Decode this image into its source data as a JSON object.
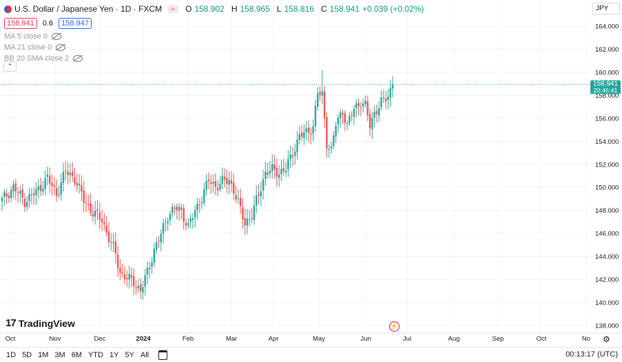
{
  "header": {
    "symbol_title": "U.S. Dollar / Japanese Yen · 1D · FXCM",
    "open_label": "O",
    "open": "158.902",
    "high_label": "H",
    "high": "158.965",
    "low_label": "L",
    "low": "158.816",
    "close_label": "C",
    "close": "158.941",
    "change": "+0.039 (+0.02%)",
    "sell_price": "158.941",
    "spread": "0.6",
    "buy_price": "158.947",
    "currency": "JPY",
    "collapse_icon": "chevron-up-icon",
    "pill_icon": "equals-icon"
  },
  "indicators": [
    {
      "label": "MA 5 close 0"
    },
    {
      "label": "MA 21 close 0"
    },
    {
      "label": "BB 20 SMA close 2"
    }
  ],
  "last_price": {
    "value": "158.941",
    "countdown": "20:46:41",
    "color": "#26a69a"
  },
  "brand": "TradingView",
  "timeframes": [
    "1D",
    "5D",
    "1M",
    "3M",
    "6M",
    "YTD",
    "1Y",
    "5Y",
    "All"
  ],
  "clock": "00:13:17 (UTC)",
  "colors": {
    "up": "#26a69a",
    "down": "#ef5350",
    "grid": "#f0f3fa"
  },
  "chart_data": {
    "type": "candlestick",
    "y_ticks": [
      "164.000",
      "162.000",
      "160.000",
      "158.000",
      "156.000",
      "154.000",
      "152.000",
      "150.000",
      "148.000",
      "146.000",
      "144.000",
      "142.000",
      "140.000",
      "138.000"
    ],
    "x_ticks": [
      "Oct",
      "Nov",
      "Dec",
      "2024",
      "Feb",
      "Mar",
      "Apr",
      "May",
      "Jun",
      "Jul",
      "Aug",
      "Sep",
      "Oct",
      "No"
    ],
    "ylim": [
      137.0,
      165.0
    ],
    "close_anchors": [
      {
        "bar": 0,
        "close": 148.9
      },
      {
        "bar": 5,
        "close": 150.0
      },
      {
        "bar": 10,
        "close": 148.8
      },
      {
        "bar": 15,
        "close": 149.6
      },
      {
        "bar": 20,
        "close": 150.8
      },
      {
        "bar": 24,
        "close": 149.4
      },
      {
        "bar": 28,
        "close": 151.4
      },
      {
        "bar": 32,
        "close": 150.8
      },
      {
        "bar": 36,
        "close": 148.9
      },
      {
        "bar": 40,
        "close": 147.8
      },
      {
        "bar": 44,
        "close": 147.2
      },
      {
        "bar": 47,
        "close": 145.6
      },
      {
        "bar": 50,
        "close": 144.2
      },
      {
        "bar": 52,
        "close": 142.6
      },
      {
        "bar": 55,
        "close": 142.1
      },
      {
        "bar": 58,
        "close": 141.8
      },
      {
        "bar": 61,
        "close": 141.0
      },
      {
        "bar": 64,
        "close": 142.6
      },
      {
        "bar": 67,
        "close": 144.6
      },
      {
        "bar": 70,
        "close": 145.9
      },
      {
        "bar": 73,
        "close": 147.6
      },
      {
        "bar": 76,
        "close": 148.2
      },
      {
        "bar": 79,
        "close": 147.9
      },
      {
        "bar": 82,
        "close": 146.6
      },
      {
        "bar": 85,
        "close": 147.9
      },
      {
        "bar": 88,
        "close": 149.2
      },
      {
        "bar": 91,
        "close": 150.6
      },
      {
        "bar": 94,
        "close": 150.1
      },
      {
        "bar": 97,
        "close": 150.5
      },
      {
        "bar": 100,
        "close": 150.6
      },
      {
        "bar": 102,
        "close": 149.8
      },
      {
        "bar": 105,
        "close": 148.0
      },
      {
        "bar": 107,
        "close": 146.9
      },
      {
        "bar": 110,
        "close": 147.6
      },
      {
        "bar": 113,
        "close": 149.4
      },
      {
        "bar": 116,
        "close": 151.3
      },
      {
        "bar": 119,
        "close": 151.5
      },
      {
        "bar": 122,
        "close": 151.3
      },
      {
        "bar": 125,
        "close": 151.6
      },
      {
        "bar": 128,
        "close": 153.0
      },
      {
        "bar": 131,
        "close": 154.5
      },
      {
        "bar": 134,
        "close": 154.7
      },
      {
        "bar": 137,
        "close": 155.3
      },
      {
        "bar": 139,
        "close": 158.2
      },
      {
        "bar": 141,
        "close": 158.0
      },
      {
        "bar": 143,
        "close": 153.9
      },
      {
        "bar": 145,
        "close": 153.2
      },
      {
        "bar": 147,
        "close": 155.5
      },
      {
        "bar": 150,
        "close": 156.7
      },
      {
        "bar": 152,
        "close": 155.3
      },
      {
        "bar": 155,
        "close": 156.9
      },
      {
        "bar": 158,
        "close": 157.4
      },
      {
        "bar": 160,
        "close": 157.0
      },
      {
        "bar": 162,
        "close": 155.4
      },
      {
        "bar": 164,
        "close": 156.5
      },
      {
        "bar": 167,
        "close": 157.3
      },
      {
        "bar": 170,
        "close": 158.0
      },
      {
        "bar": 172,
        "close": 158.94
      }
    ],
    "extremes": {
      "high_spike": {
        "bar": 141,
        "high": 160.2
      },
      "low_dip": {
        "bar": 61,
        "low": 140.3
      }
    },
    "last_close": 158.941
  }
}
